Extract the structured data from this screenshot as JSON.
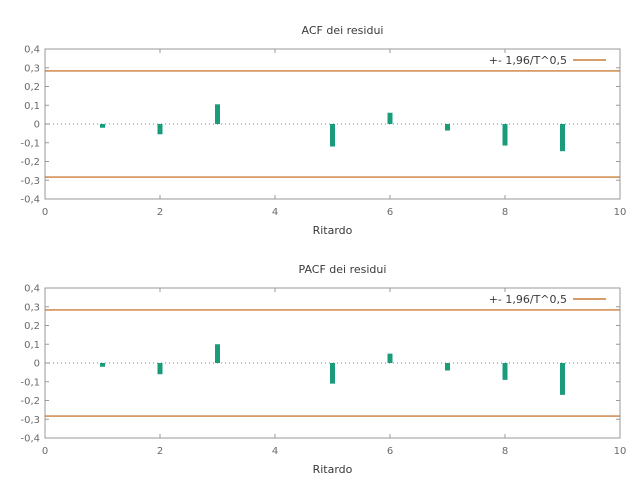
{
  "colors": {
    "bar": "#1a9c7b",
    "band": "#c0620e",
    "axis": "#9a9a9a",
    "zero": "#808080"
  },
  "chart_data": [
    {
      "type": "bar",
      "title": "ACF dei residui",
      "xlabel": "Ritardo",
      "ylabel": "",
      "x": [
        1,
        2,
        3,
        4,
        5,
        6,
        7,
        8,
        9
      ],
      "values": [
        -0.02,
        -0.055,
        0.105,
        0.0,
        -0.12,
        0.06,
        -0.035,
        -0.115,
        -0.145
      ],
      "xlim": [
        0,
        10
      ],
      "ylim": [
        -0.4,
        0.4
      ],
      "xticks": [
        "0",
        "2",
        "4",
        "6",
        "8",
        "10"
      ],
      "yticks": [
        "-0,4",
        "-0,3",
        "-0,2",
        "-0,1",
        "0",
        "0,1",
        "0,2",
        "0,3",
        "0,4"
      ],
      "band": 0.283,
      "legend": "+- 1,96/T^0,5",
      "legend_position": "top-right"
    },
    {
      "type": "bar",
      "title": "PACF dei residui",
      "xlabel": "Ritardo",
      "ylabel": "",
      "x": [
        1,
        2,
        3,
        4,
        5,
        6,
        7,
        8,
        9
      ],
      "values": [
        -0.02,
        -0.06,
        0.1,
        0.0,
        -0.11,
        0.05,
        -0.04,
        -0.09,
        -0.17
      ],
      "xlim": [
        0,
        10
      ],
      "ylim": [
        -0.4,
        0.4
      ],
      "xticks": [
        "0",
        "2",
        "4",
        "6",
        "8",
        "10"
      ],
      "yticks": [
        "-0,4",
        "-0,3",
        "-0,2",
        "-0,1",
        "0",
        "0,1",
        "0,2",
        "0,3",
        "0,4"
      ],
      "band": 0.283,
      "legend": "+- 1,96/T^0,5",
      "legend_position": "top-right"
    }
  ]
}
